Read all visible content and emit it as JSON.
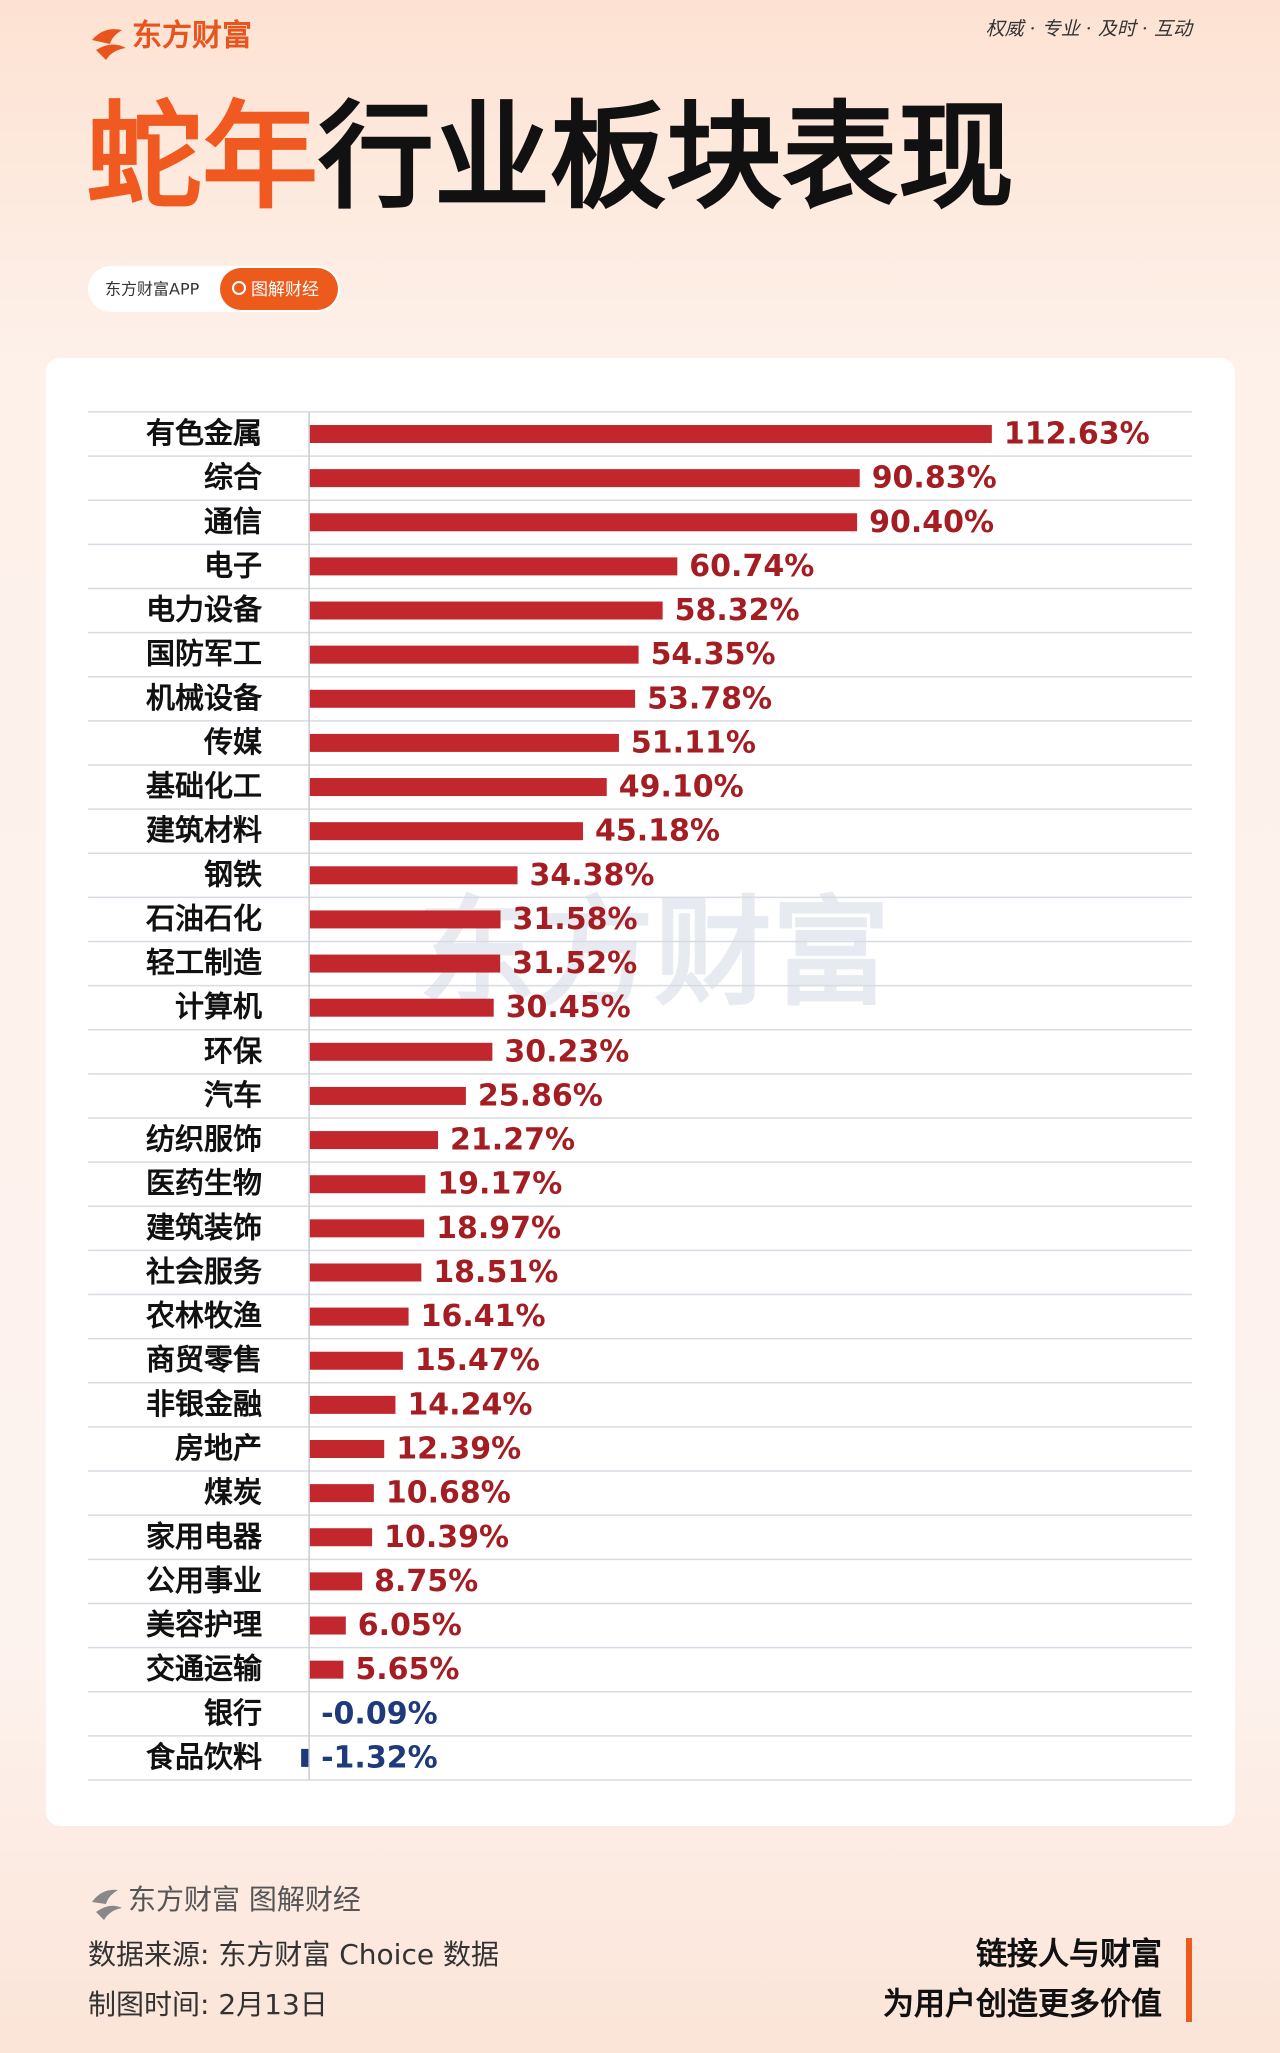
{
  "brand": "东方财富",
  "slogan": "权威 · 专业 · 及时 · 互动",
  "search": {
    "source": "东方财富APP",
    "button": "图解财经"
  },
  "footer": {
    "brand": "东方财富 图解财经",
    "source": "数据来源: 东方财富 Choice 数据",
    "date": "制图时间: 2月13日",
    "tagline1": "链接人与财富",
    "tagline2": "为用户创造更多价值"
  },
  "chart_data": {
    "type": "bar",
    "orientation": "horizontal",
    "title_highlight": "蛇年",
    "title": "行业板块表现",
    "watermark": "东方财富",
    "categories": [
      "有色金属",
      "综合",
      "通信",
      "电子",
      "电力设备",
      "国防军工",
      "机械设备",
      "传媒",
      "基础化工",
      "建筑材料",
      "钢铁",
      "石油石化",
      "轻工制造",
      "计算机",
      "环保",
      "汽车",
      "纺织服饰",
      "医药生物",
      "建筑装饰",
      "社会服务",
      "农林牧渔",
      "商贸零售",
      "非银金融",
      "房地产",
      "煤炭",
      "家用电器",
      "公用事业",
      "美容护理",
      "交通运输",
      "银行",
      "食品饮料"
    ],
    "values": [
      112.63,
      90.83,
      90.4,
      60.74,
      58.32,
      54.35,
      53.78,
      51.11,
      49.1,
      45.18,
      34.38,
      31.58,
      31.52,
      30.45,
      30.23,
      25.86,
      21.27,
      19.17,
      18.97,
      18.51,
      16.41,
      15.47,
      14.24,
      12.39,
      10.68,
      10.39,
      8.75,
      6.05,
      5.65,
      -0.09,
      -1.32
    ],
    "value_labels": [
      "112.63%",
      "90.83%",
      "90.40%",
      "60.74%",
      "58.32%",
      "54.35%",
      "53.78%",
      "51.11%",
      "49.10%",
      "45.18%",
      "34.38%",
      "31.58%",
      "31.52%",
      "30.45%",
      "30.23%",
      "25.86%",
      "21.27%",
      "19.17%",
      "18.97%",
      "18.51%",
      "16.41%",
      "15.47%",
      "14.24%",
      "12.39%",
      "10.68%",
      "10.39%",
      "8.75%",
      "6.05%",
      "5.65%",
      "-0.09%",
      "-1.32%"
    ],
    "color": "#c1272d",
    "negative_color": "#1f3a7a",
    "xlim": [
      -2,
      144
    ]
  }
}
